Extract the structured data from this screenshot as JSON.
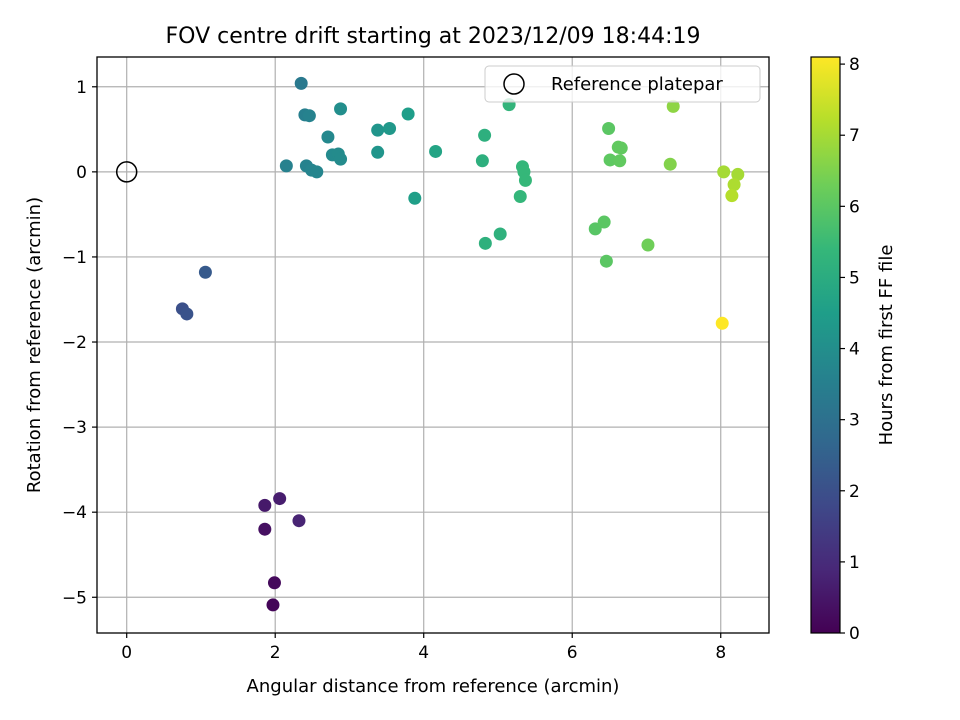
{
  "chart_data": {
    "type": "scatter",
    "title": "FOV centre drift starting at 2023/12/09 18:44:19",
    "xlabel": "Angular distance from reference (arcmin)",
    "ylabel": "Rotation from reference (arcmin)",
    "xlim": [
      -0.4,
      8.65
    ],
    "ylim": [
      -5.42,
      1.35
    ],
    "xticks": [
      0,
      2,
      4,
      6,
      8
    ],
    "xtick_labels": [
      "0",
      "2",
      "4",
      "6",
      "8"
    ],
    "yticks": [
      1,
      0,
      -1,
      -2,
      -3,
      -4,
      -5
    ],
    "ytick_labels": [
      "1",
      "0",
      "−1",
      "−2",
      "−3",
      "−4",
      "−5"
    ],
    "grid": true,
    "legend": {
      "position": "top-right",
      "entries": [
        {
          "label": "Reference platepar",
          "marker": "open-circle"
        }
      ]
    },
    "reference_point": {
      "x": 0,
      "y": 0
    },
    "colorbar": {
      "label": "Hours from first FF file",
      "range": [
        0,
        8.1
      ],
      "ticks": [
        0,
        1,
        2,
        3,
        4,
        5,
        6,
        7,
        8
      ],
      "tick_labels": [
        "0",
        "1",
        "2",
        "3",
        "4",
        "5",
        "6",
        "7",
        "8"
      ],
      "colormap": "viridis"
    },
    "points": [
      {
        "x": 1.97,
        "y": -5.09,
        "c": 0.1
      },
      {
        "x": 1.99,
        "y": -4.83,
        "c": 0.2
      },
      {
        "x": 1.86,
        "y": -4.2,
        "c": 0.35
      },
      {
        "x": 1.86,
        "y": -3.92,
        "c": 0.55
      },
      {
        "x": 2.06,
        "y": -3.84,
        "c": 0.65
      },
      {
        "x": 2.32,
        "y": -4.1,
        "c": 0.8
      },
      {
        "x": 0.75,
        "y": -1.61,
        "c": 2.0
      },
      {
        "x": 0.81,
        "y": -1.67,
        "c": 2.1
      },
      {
        "x": 1.06,
        "y": -1.18,
        "c": 2.3
      },
      {
        "x": 2.35,
        "y": 1.04,
        "c": 3.3
      },
      {
        "x": 2.4,
        "y": 0.67,
        "c": 3.5
      },
      {
        "x": 2.46,
        "y": 0.66,
        "c": 3.6
      },
      {
        "x": 2.15,
        "y": 0.07,
        "c": 3.55
      },
      {
        "x": 2.42,
        "y": 0.07,
        "c": 3.6
      },
      {
        "x": 2.49,
        "y": 0.02,
        "c": 3.65
      },
      {
        "x": 2.56,
        "y": 0.0,
        "c": 3.7
      },
      {
        "x": 2.71,
        "y": 0.41,
        "c": 3.8
      },
      {
        "x": 2.77,
        "y": 0.2,
        "c": 3.85
      },
      {
        "x": 2.85,
        "y": 0.21,
        "c": 3.9
      },
      {
        "x": 2.88,
        "y": 0.15,
        "c": 3.9
      },
      {
        "x": 2.88,
        "y": 0.74,
        "c": 4.0
      },
      {
        "x": 3.38,
        "y": 0.49,
        "c": 4.2
      },
      {
        "x": 3.54,
        "y": 0.51,
        "c": 4.3
      },
      {
        "x": 3.38,
        "y": 0.23,
        "c": 4.2
      },
      {
        "x": 3.79,
        "y": 0.68,
        "c": 4.5
      },
      {
        "x": 3.88,
        "y": -0.31,
        "c": 4.55
      },
      {
        "x": 4.16,
        "y": 0.24,
        "c": 4.7
      },
      {
        "x": 4.82,
        "y": 0.43,
        "c": 5.1
      },
      {
        "x": 4.79,
        "y": 0.13,
        "c": 5.1
      },
      {
        "x": 4.83,
        "y": -0.84,
        "c": 5.15
      },
      {
        "x": 5.03,
        "y": -0.73,
        "c": 5.2
      },
      {
        "x": 5.15,
        "y": 0.79,
        "c": 5.3
      },
      {
        "x": 5.33,
        "y": 0.06,
        "c": 5.35
      },
      {
        "x": 5.35,
        "y": 0.0,
        "c": 5.4
      },
      {
        "x": 5.37,
        "y": -0.1,
        "c": 5.4
      },
      {
        "x": 5.3,
        "y": -0.29,
        "c": 5.35
      },
      {
        "x": 6.49,
        "y": 0.51,
        "c": 6.0
      },
      {
        "x": 6.51,
        "y": 0.14,
        "c": 6.05
      },
      {
        "x": 6.62,
        "y": 0.29,
        "c": 6.1
      },
      {
        "x": 6.66,
        "y": 0.28,
        "c": 6.1
      },
      {
        "x": 6.64,
        "y": 0.13,
        "c": 6.1
      },
      {
        "x": 6.31,
        "y": -0.67,
        "c": 5.95
      },
      {
        "x": 6.43,
        "y": -0.59,
        "c": 6.0
      },
      {
        "x": 6.46,
        "y": -1.05,
        "c": 6.0
      },
      {
        "x": 7.02,
        "y": -0.86,
        "c": 6.3
      },
      {
        "x": 7.32,
        "y": 0.09,
        "c": 6.55
      },
      {
        "x": 7.36,
        "y": 0.77,
        "c": 6.7
      },
      {
        "x": 8.04,
        "y": 0.0,
        "c": 7.0
      },
      {
        "x": 8.23,
        "y": -0.03,
        "c": 7.0
      },
      {
        "x": 8.18,
        "y": -0.15,
        "c": 7.1
      },
      {
        "x": 8.15,
        "y": -0.28,
        "c": 7.2
      },
      {
        "x": 8.02,
        "y": -1.78,
        "c": 8.1
      }
    ]
  }
}
